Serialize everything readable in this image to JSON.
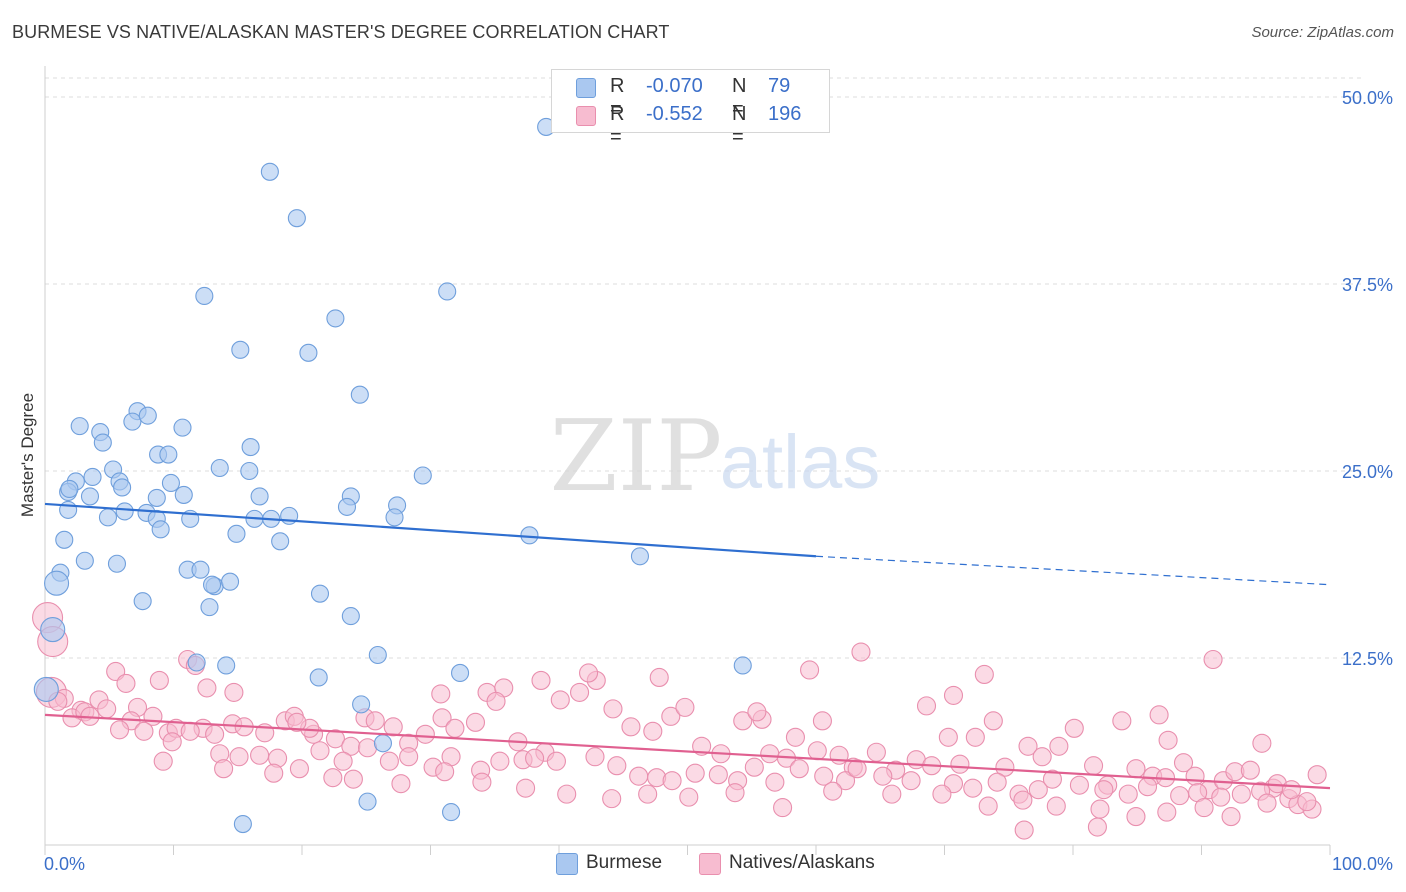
{
  "title": "BURMESE VS NATIVE/ALASKAN MASTER'S DEGREE CORRELATION CHART",
  "source": "Source: ZipAtlas.com",
  "watermark": {
    "zip": "ZIP",
    "atlas": "atlas"
  },
  "legend": {
    "rows": [
      {
        "r_label": "R =",
        "r_value": "-0.070",
        "n_label": "N =",
        "n_value": "79"
      },
      {
        "r_label": "R =",
        "r_value": "-0.552",
        "n_label": "N =",
        "n_value": "196"
      }
    ]
  },
  "bottom_legend": {
    "burmese": "Burmese",
    "natives": "Natives/Alaskans"
  },
  "colors": {
    "burmese_fill": "#aac8f0",
    "burmese_stroke": "#6f9fdc",
    "burmese_line": "#2f6fd0",
    "natives_fill": "#f7bcd0",
    "natives_stroke": "#e98fae",
    "natives_line": "#e06090",
    "grid": "#dcdcdc",
    "axis_label": "#3b6fc9"
  },
  "chart_data": {
    "type": "scatter",
    "title": "BURMESE VS NATIVE/ALASKAN MASTER'S DEGREE CORRELATION CHART",
    "xlabel": "",
    "ylabel": "Master's Degree",
    "xlim": [
      0,
      100
    ],
    "ylim": [
      0,
      50
    ],
    "x_tick_labels": [
      {
        "value": 0,
        "label": "0.0%"
      },
      {
        "value": 100,
        "label": "100.0%"
      }
    ],
    "y_tick_labels": [
      {
        "value": 12.5,
        "label": "12.5%"
      },
      {
        "value": 25,
        "label": "25.0%"
      },
      {
        "value": 37.5,
        "label": "37.5%"
      },
      {
        "value": 50,
        "label": "50.0%"
      }
    ],
    "series": [
      {
        "name": "Burmese",
        "r": -0.07,
        "n": 79,
        "trend": {
          "x_start": 0,
          "y_start": 22.8,
          "x_solid_end": 60,
          "y_solid_end": 19.3,
          "x_end": 100,
          "y_end": 17.4
        },
        "points": [
          [
            39,
            48.0
          ],
          [
            17.5,
            45.0
          ],
          [
            19.6,
            41.9
          ],
          [
            12.4,
            36.7
          ],
          [
            31.3,
            37.0
          ],
          [
            22.6,
            35.2
          ],
          [
            15.2,
            33.1
          ],
          [
            20.5,
            32.9
          ],
          [
            24.5,
            30.1
          ],
          [
            7.2,
            29.0
          ],
          [
            6.8,
            28.3
          ],
          [
            8.0,
            28.7
          ],
          [
            2.7,
            28.0
          ],
          [
            4.3,
            27.6
          ],
          [
            10.7,
            27.9
          ],
          [
            4.5,
            26.9
          ],
          [
            16.0,
            26.6
          ],
          [
            8.8,
            26.1
          ],
          [
            9.6,
            26.1
          ],
          [
            13.6,
            25.2
          ],
          [
            15.9,
            25.0
          ],
          [
            5.3,
            25.1
          ],
          [
            3.7,
            24.6
          ],
          [
            2.4,
            24.3
          ],
          [
            5.8,
            24.3
          ],
          [
            9.8,
            24.2
          ],
          [
            1.8,
            23.6
          ],
          [
            10.8,
            23.4
          ],
          [
            16.7,
            23.3
          ],
          [
            3.5,
            23.3
          ],
          [
            8.7,
            23.2
          ],
          [
            23.8,
            23.3
          ],
          [
            1.8,
            22.4
          ],
          [
            6.2,
            22.3
          ],
          [
            7.9,
            22.2
          ],
          [
            29.4,
            24.7
          ],
          [
            27.4,
            22.7
          ],
          [
            23.5,
            22.6
          ],
          [
            4.9,
            21.9
          ],
          [
            11.3,
            21.8
          ],
          [
            16.3,
            21.8
          ],
          [
            17.6,
            21.8
          ],
          [
            27.2,
            21.9
          ],
          [
            8.7,
            21.8
          ],
          [
            9.0,
            21.1
          ],
          [
            1.5,
            20.4
          ],
          [
            14.9,
            20.8
          ],
          [
            18.3,
            20.3
          ],
          [
            37.7,
            20.7
          ],
          [
            3.1,
            19.0
          ],
          [
            5.6,
            18.8
          ],
          [
            1.2,
            18.2
          ],
          [
            11.1,
            18.4
          ],
          [
            12.1,
            18.4
          ],
          [
            46.3,
            19.3
          ],
          [
            0.9,
            17.5
          ],
          [
            13.2,
            17.3
          ],
          [
            14.4,
            17.6
          ],
          [
            21.4,
            16.8
          ],
          [
            7.6,
            16.3
          ],
          [
            12.8,
            15.9
          ],
          [
            23.8,
            15.3
          ],
          [
            0.6,
            14.4
          ],
          [
            25.9,
            12.7
          ],
          [
            11.8,
            12.2
          ],
          [
            14.1,
            12.0
          ],
          [
            32.3,
            11.5
          ],
          [
            54.3,
            12.0
          ],
          [
            0.1,
            10.4
          ],
          [
            21.3,
            11.2
          ],
          [
            24.6,
            9.4
          ],
          [
            26.3,
            6.8
          ],
          [
            25.1,
            2.9
          ],
          [
            31.6,
            2.2
          ],
          [
            15.4,
            1.4
          ],
          [
            1.9,
            23.8
          ],
          [
            6.0,
            23.9
          ],
          [
            13.0,
            17.4
          ],
          [
            19.0,
            22.0
          ]
        ]
      },
      {
        "name": "Natives/Alaskans",
        "r": -0.552,
        "n": 196,
        "trend": {
          "x_start": 0,
          "y_start": 8.7,
          "x_end": 100,
          "y_end": 3.8
        },
        "points": [
          [
            0.2,
            15.2
          ],
          [
            0.6,
            13.6
          ],
          [
            0.5,
            10.2
          ],
          [
            1.5,
            9.8
          ],
          [
            2.8,
            9.0
          ],
          [
            4.2,
            9.7
          ],
          [
            5.5,
            11.6
          ],
          [
            6.3,
            10.8
          ],
          [
            7.2,
            9.2
          ],
          [
            8.9,
            11.0
          ],
          [
            11.1,
            12.4
          ],
          [
            11.7,
            12.0
          ],
          [
            12.6,
            10.5
          ],
          [
            14.7,
            10.2
          ],
          [
            2.1,
            8.5
          ],
          [
            3.1,
            8.9
          ],
          [
            4.8,
            9.1
          ],
          [
            6.7,
            8.3
          ],
          [
            8.4,
            8.6
          ],
          [
            9.6,
            7.5
          ],
          [
            10.2,
            7.8
          ],
          [
            12.3,
            7.8
          ],
          [
            13.2,
            7.4
          ],
          [
            14.6,
            8.1
          ],
          [
            15.5,
            7.9
          ],
          [
            17.1,
            7.5
          ],
          [
            18.7,
            8.3
          ],
          [
            19.4,
            8.6
          ],
          [
            20.9,
            7.4
          ],
          [
            22.6,
            7.1
          ],
          [
            23.8,
            6.6
          ],
          [
            24.9,
            8.5
          ],
          [
            25.7,
            8.3
          ],
          [
            27.1,
            7.9
          ],
          [
            28.3,
            6.8
          ],
          [
            29.6,
            7.4
          ],
          [
            30.9,
            8.5
          ],
          [
            31.9,
            7.8
          ],
          [
            33.5,
            8.2
          ],
          [
            34.4,
            10.2
          ],
          [
            35.7,
            10.5
          ],
          [
            36.8,
            6.9
          ],
          [
            38.9,
            6.2
          ],
          [
            40.1,
            9.7
          ],
          [
            41.6,
            10.2
          ],
          [
            42.9,
            11.0
          ],
          [
            44.2,
            9.1
          ],
          [
            45.6,
            7.9
          ],
          [
            47.3,
            7.6
          ],
          [
            48.7,
            8.6
          ],
          [
            49.8,
            9.2
          ],
          [
            51.1,
            6.6
          ],
          [
            52.6,
            6.1
          ],
          [
            54.3,
            8.3
          ],
          [
            55.8,
            8.4
          ],
          [
            56.4,
            6.1
          ],
          [
            57.7,
            5.8
          ],
          [
            58.4,
            7.2
          ],
          [
            60.1,
            6.3
          ],
          [
            60.5,
            8.3
          ],
          [
            61.8,
            6.0
          ],
          [
            62.9,
            5.2
          ],
          [
            64.7,
            6.2
          ],
          [
            66.2,
            5.0
          ],
          [
            67.8,
            5.7
          ],
          [
            68.6,
            9.3
          ],
          [
            70.3,
            7.2
          ],
          [
            71.2,
            5.4
          ],
          [
            72.4,
            7.2
          ],
          [
            73.8,
            8.3
          ],
          [
            74.7,
            5.2
          ],
          [
            76.5,
            6.6
          ],
          [
            77.6,
            5.9
          ],
          [
            78.9,
            6.6
          ],
          [
            80.1,
            7.8
          ],
          [
            81.6,
            5.3
          ],
          [
            82.7,
            4.0
          ],
          [
            83.8,
            8.3
          ],
          [
            84.9,
            5.1
          ],
          [
            86.2,
            4.6
          ],
          [
            87.4,
            7.0
          ],
          [
            88.6,
            5.5
          ],
          [
            89.5,
            4.6
          ],
          [
            90.6,
            3.7
          ],
          [
            91.7,
            4.3
          ],
          [
            92.6,
            4.9
          ],
          [
            93.8,
            5.0
          ],
          [
            94.7,
            6.8
          ],
          [
            95.6,
            3.8
          ],
          [
            96.8,
            3.1
          ],
          [
            97.5,
            2.7
          ],
          [
            98.6,
            2.4
          ],
          [
            99.0,
            4.7
          ],
          [
            90.9,
            12.4
          ],
          [
            86.7,
            8.7
          ],
          [
            73.1,
            11.4
          ],
          [
            70.7,
            10.0
          ],
          [
            63.5,
            12.9
          ],
          [
            59.5,
            11.7
          ],
          [
            55.4,
            8.9
          ],
          [
            47.8,
            11.2
          ],
          [
            42.3,
            11.5
          ],
          [
            38.6,
            11.0
          ],
          [
            35.1,
            9.6
          ],
          [
            30.8,
            10.1
          ],
          [
            20.6,
            7.8
          ],
          [
            1.0,
            9.6
          ],
          [
            3.5,
            8.6
          ],
          [
            5.8,
            7.7
          ],
          [
            7.7,
            7.6
          ],
          [
            9.9,
            6.9
          ],
          [
            11.3,
            7.6
          ],
          [
            13.6,
            6.1
          ],
          [
            15.1,
            5.9
          ],
          [
            16.7,
            6.0
          ],
          [
            18.1,
            5.8
          ],
          [
            19.8,
            5.1
          ],
          [
            21.4,
            6.3
          ],
          [
            23.2,
            5.6
          ],
          [
            25.1,
            6.5
          ],
          [
            26.8,
            5.6
          ],
          [
            28.3,
            5.9
          ],
          [
            30.2,
            5.2
          ],
          [
            31.6,
            5.9
          ],
          [
            33.9,
            5.0
          ],
          [
            35.4,
            5.6
          ],
          [
            37.2,
            5.7
          ],
          [
            38.1,
            5.8
          ],
          [
            39.8,
            5.6
          ],
          [
            42.8,
            5.9
          ],
          [
            44.5,
            5.3
          ],
          [
            46.2,
            4.6
          ],
          [
            47.6,
            4.5
          ],
          [
            48.8,
            4.3
          ],
          [
            50.6,
            4.8
          ],
          [
            52.4,
            4.7
          ],
          [
            53.9,
            4.3
          ],
          [
            55.2,
            5.2
          ],
          [
            56.8,
            4.2
          ],
          [
            58.7,
            5.1
          ],
          [
            60.6,
            4.6
          ],
          [
            62.3,
            4.3
          ],
          [
            63.2,
            5.1
          ],
          [
            65.2,
            4.6
          ],
          [
            67.4,
            4.3
          ],
          [
            69.0,
            5.3
          ],
          [
            70.7,
            4.1
          ],
          [
            72.2,
            3.8
          ],
          [
            74.1,
            4.2
          ],
          [
            75.8,
            3.4
          ],
          [
            77.3,
            3.7
          ],
          [
            78.4,
            4.4
          ],
          [
            80.5,
            4.0
          ],
          [
            82.4,
            3.7
          ],
          [
            84.3,
            3.4
          ],
          [
            85.8,
            3.9
          ],
          [
            87.2,
            4.5
          ],
          [
            88.3,
            3.3
          ],
          [
            89.7,
            3.5
          ],
          [
            91.5,
            3.2
          ],
          [
            93.1,
            3.4
          ],
          [
            94.6,
            3.6
          ],
          [
            95.9,
            4.1
          ],
          [
            97.0,
            3.7
          ],
          [
            98.2,
            2.9
          ],
          [
            9.2,
            5.6
          ],
          [
            13.9,
            5.1
          ],
          [
            17.8,
            4.8
          ],
          [
            22.4,
            4.5
          ],
          [
            24.0,
            4.4
          ],
          [
            27.7,
            4.1
          ],
          [
            31.1,
            4.9
          ],
          [
            34.0,
            4.2
          ],
          [
            37.4,
            3.8
          ],
          [
            40.6,
            3.4
          ],
          [
            44.1,
            3.1
          ],
          [
            46.9,
            3.4
          ],
          [
            50.1,
            3.2
          ],
          [
            53.7,
            3.5
          ],
          [
            57.4,
            2.5
          ],
          [
            61.3,
            3.6
          ],
          [
            65.9,
            3.4
          ],
          [
            69.8,
            3.4
          ],
          [
            73.4,
            2.6
          ],
          [
            76.1,
            3.0
          ],
          [
            78.7,
            2.6
          ],
          [
            82.1,
            2.4
          ],
          [
            84.9,
            1.9
          ],
          [
            87.3,
            2.2
          ],
          [
            90.2,
            2.5
          ],
          [
            92.3,
            1.9
          ],
          [
            95.1,
            2.8
          ],
          [
            76.2,
            1.0
          ],
          [
            81.9,
            1.2
          ],
          [
            19.6,
            8.2
          ]
        ]
      }
    ]
  }
}
